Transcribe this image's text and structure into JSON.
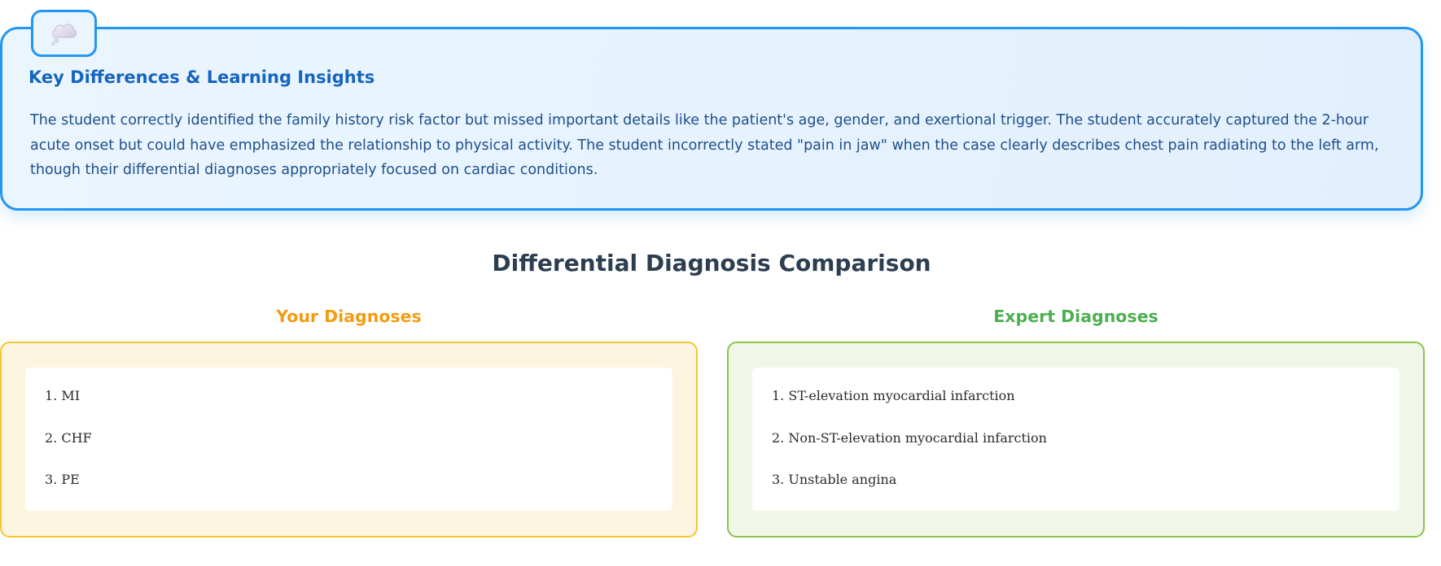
{
  "insights": {
    "icon": "thought-bubble-icon",
    "title": "Key Differences & Learning Insights",
    "text": "The student correctly identified the family history risk factor but missed important details like the patient's age, gender, and exertional trigger. The student accurately captured the 2-hour acute onset but could have emphasized the relationship to physical activity. The student incorrectly stated \"pain in jaw\" when the case clearly describes chest pain radiating to the left arm, though their differential diagnoses appropriately focused on cardiac conditions."
  },
  "comparison": {
    "title": "Differential Diagnosis Comparison",
    "student": {
      "heading": "Your Diagnoses",
      "items": [
        "1. MI",
        "2. CHF",
        "3. PE"
      ]
    },
    "expert": {
      "heading": "Expert Diagnoses",
      "items": [
        "1. ST-elevation myocardial infarction",
        "2. Non-ST-elevation myocardial infarction",
        "3. Unstable angina"
      ]
    }
  },
  "colors": {
    "accent_blue": "#2196f3",
    "title_blue": "#1565c0",
    "student_orange": "#f39c12",
    "expert_green": "#4caf50"
  }
}
